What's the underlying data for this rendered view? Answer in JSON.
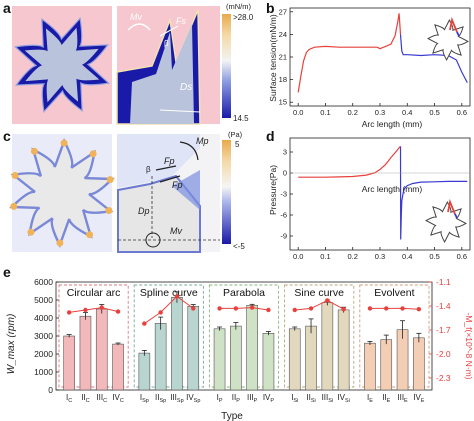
{
  "figure": {
    "panel_labels": [
      "a",
      "b",
      "c",
      "d",
      "e"
    ]
  },
  "panel_a": {
    "colorbar_unit": "(mN/m)",
    "colorbar_max": ">28.0",
    "colorbar_min": "14.5",
    "labels": {
      "mv": "Mv",
      "fs": "Fs",
      "beta": "β",
      "ds": "Ds"
    },
    "colors": {
      "background": "#f7c7cf",
      "gear": "#1a1aa8",
      "gear_edge": "#5566cc",
      "inner": "#b9c3dc"
    }
  },
  "panel_c": {
    "colorbar_unit": "(Pa)",
    "colorbar_max": "5",
    "colorbar_min": "<-5",
    "labels": {
      "mp": "Mp",
      "fp1": "Fp",
      "fp2": "Fp",
      "beta": "β",
      "dp": "Dp",
      "mv": "Mv"
    }
  },
  "chart_data": [
    {
      "type": "line",
      "panel": "b",
      "xlabel": "Arc length (mm)",
      "ylabel": "Surface tension(mN/m)",
      "xlim": [
        -0.03,
        0.63
      ],
      "ylim": [
        14.5,
        27.5
      ],
      "xticks": [
        0.0,
        0.1,
        0.2,
        0.3,
        0.4,
        0.5,
        0.6
      ],
      "yticks": [
        15,
        18,
        21,
        24,
        27
      ],
      "series": [
        {
          "color": "#e8413c",
          "x": [
            0.0,
            0.01,
            0.02,
            0.03,
            0.04,
            0.06,
            0.1,
            0.15,
            0.2,
            0.25,
            0.29,
            0.3,
            0.32,
            0.34,
            0.355,
            0.365,
            0.37,
            0.375
          ],
          "y": [
            16.3,
            18.5,
            20.5,
            21.6,
            22.0,
            22.3,
            22.4,
            22.3,
            22.3,
            22.3,
            22.3,
            22.1,
            22.4,
            22.7,
            23.8,
            25.6,
            26.8,
            24.0
          ]
        },
        {
          "color": "#3a3ad0",
          "x": [
            0.375,
            0.38,
            0.385,
            0.39,
            0.4,
            0.45,
            0.5,
            0.55,
            0.58,
            0.6,
            0.62
          ],
          "y": [
            24.0,
            21.8,
            21.3,
            21.3,
            21.3,
            21.2,
            21.3,
            21.2,
            20.6,
            19.0,
            17.6
          ]
        }
      ]
    },
    {
      "type": "line",
      "panel": "d",
      "xlabel": "Arc length (mm)",
      "ylabel": "Pressure(Pa)",
      "xlim": [
        -0.03,
        0.63
      ],
      "ylim": [
        -11,
        5
      ],
      "xticks": [
        0.0,
        0.1,
        0.2,
        0.3,
        0.4,
        0.5,
        0.6
      ],
      "yticks": [
        3,
        0,
        -3,
        -6,
        -9
      ],
      "series": [
        {
          "color": "#e8413c",
          "x": [
            0.0,
            0.05,
            0.1,
            0.15,
            0.2,
            0.25,
            0.28,
            0.3,
            0.32,
            0.34,
            0.36,
            0.37,
            0.375
          ],
          "y": [
            -0.6,
            -0.6,
            -0.6,
            -0.55,
            -0.5,
            -0.3,
            0.0,
            0.5,
            1.2,
            2.2,
            3.1,
            3.6,
            3.8
          ]
        },
        {
          "color": "#3a3ad0",
          "x": [
            0.375,
            0.376,
            0.378,
            0.38,
            0.385,
            0.39,
            0.4,
            0.42,
            0.45,
            0.5,
            0.55,
            0.6,
            0.62
          ],
          "y": [
            3.8,
            -9.5,
            -6.0,
            -4.0,
            -2.8,
            -2.2,
            -1.8,
            -1.5,
            -1.3,
            -1.25,
            -1.2,
            -1.2,
            -1.2
          ]
        }
      ]
    },
    {
      "type": "bar",
      "panel": "e",
      "ylabel": "W_max (rpm)",
      "y2label": "-M_f(×10^-8 N·m)",
      "xlabel": "Type",
      "ylim": [
        0,
        6000
      ],
      "yticks": [
        0,
        1000,
        2000,
        3000,
        4000,
        5000,
        6000
      ],
      "y2lim": [
        -1.1,
        -2.45
      ],
      "y2ticks": [
        -1.1,
        -1.4,
        -1.7,
        -2.0,
        -2.3
      ],
      "groups": [
        {
          "name": "Circular arc",
          "categories": [
            "I_C",
            "II_C",
            "III_C",
            "IV_C"
          ],
          "values": [
            3000,
            4100,
            4500,
            2550
          ],
          "errors": [
            80,
            200,
            250,
            60
          ],
          "moment": [
            -1.48,
            -1.45,
            -1.42,
            -1.47
          ],
          "color": "#f2b8ba",
          "edge": "#d97a80"
        },
        {
          "name": "Spline curve",
          "categories": [
            "I_Sp",
            "II_Sp",
            "III_Sp",
            "IV_Sp"
          ],
          "values": [
            2050,
            3700,
            5150,
            4650
          ],
          "errors": [
            150,
            350,
            300,
            100
          ],
          "moment": [
            -1.62,
            -1.48,
            -1.28,
            -1.43
          ],
          "color": "#b9d5cf",
          "edge": "#7aa79c"
        },
        {
          "name": "Parabola",
          "categories": [
            "I_P",
            "II_P",
            "III_P",
            "IV_P"
          ],
          "values": [
            3400,
            3550,
            4700,
            3150
          ],
          "errors": [
            100,
            200,
            60,
            100
          ],
          "moment": [
            -1.43,
            -1.43,
            -1.42,
            -1.45
          ],
          "color": "#cfe2c6",
          "edge": "#8fb283"
        },
        {
          "name": "Sine curve",
          "categories": [
            "I_Si",
            "II_Si",
            "III_Si",
            "IV_Si"
          ],
          "values": [
            3400,
            3550,
            4850,
            4450
          ],
          "errors": [
            100,
            400,
            150,
            150
          ],
          "moment": [
            -1.45,
            -1.43,
            -1.33,
            -1.44
          ],
          "color": "#e1d8bd",
          "edge": "#b5a77e"
        },
        {
          "name": "Evolvent",
          "categories": [
            "I_E",
            "II_E",
            "III_E",
            "IV_E"
          ],
          "values": [
            2600,
            2800,
            3350,
            2900
          ],
          "errors": [
            100,
            250,
            500,
            250
          ],
          "moment": [
            -1.43,
            -1.43,
            -1.43,
            -1.44
          ],
          "color": "#f3cdb4",
          "edge": "#d39c7a"
        }
      ],
      "moment_color": "#e8413c"
    }
  ]
}
